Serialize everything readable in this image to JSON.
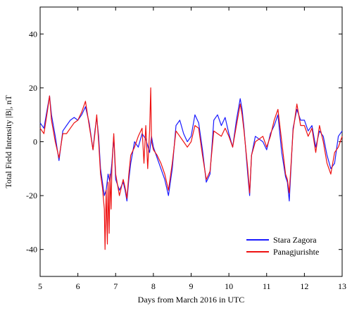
{
  "chart_data": {
    "type": "line",
    "xlabel": "Days from March 2016 in UTC",
    "ylabel": "Total Field Intensity |B|,  nT",
    "xlim": [
      5,
      13
    ],
    "ylim": [
      -50,
      50
    ],
    "x_ticks": [
      5,
      6,
      7,
      8,
      9,
      10,
      11,
      12,
      13
    ],
    "y_ticks": [
      -40,
      -20,
      0,
      20,
      40
    ],
    "grid": false,
    "legend_position": "bottom-right",
    "series": [
      {
        "name": "Stara Zagora",
        "color": "#1a1aff",
        "x": [
          5.0,
          5.1,
          5.2,
          5.25,
          5.3,
          5.4,
          5.5,
          5.6,
          5.7,
          5.8,
          5.9,
          6.0,
          6.1,
          6.2,
          6.3,
          6.4,
          6.45,
          6.5,
          6.55,
          6.6,
          6.65,
          6.7,
          6.75,
          6.8,
          6.85,
          6.9,
          6.95,
          7.0,
          7.1,
          7.2,
          7.25,
          7.3,
          7.35,
          7.4,
          7.5,
          7.6,
          7.7,
          7.8,
          7.9,
          7.95,
          8.0,
          8.1,
          8.2,
          8.3,
          8.4,
          8.5,
          8.6,
          8.7,
          8.8,
          8.9,
          9.0,
          9.1,
          9.2,
          9.3,
          9.4,
          9.5,
          9.6,
          9.7,
          9.8,
          9.9,
          10.0,
          10.1,
          10.2,
          10.3,
          10.35,
          10.4,
          10.5,
          10.55,
          10.6,
          10.7,
          10.8,
          10.9,
          11.0,
          11.1,
          11.2,
          11.3,
          11.4,
          11.5,
          11.55,
          11.6,
          11.7,
          11.8,
          11.9,
          12.0,
          12.1,
          12.2,
          12.3,
          12.4,
          12.5,
          12.6,
          12.7,
          12.8,
          12.9,
          13.0
        ],
        "y": [
          7,
          5,
          13,
          17,
          10,
          2,
          -7,
          4,
          6,
          8,
          9,
          8,
          10,
          13,
          7,
          -3,
          4,
          9,
          2,
          -10,
          -15,
          -20,
          -18,
          -12,
          -15,
          -8,
          2,
          -14,
          -18,
          -15,
          -18,
          -22,
          -14,
          -8,
          0,
          -2,
          3,
          1,
          -4,
          2,
          -2,
          -6,
          -10,
          -14,
          -20,
          -10,
          6,
          8,
          3,
          0,
          2,
          10,
          7,
          -3,
          -15,
          -12,
          8,
          10,
          6,
          9,
          3,
          -2,
          8,
          16,
          12,
          5,
          -12,
          -20,
          -5,
          2,
          1,
          0,
          -3,
          3,
          6,
          10,
          -4,
          -13,
          -15,
          -22,
          5,
          12,
          8,
          8,
          4,
          6,
          -2,
          4,
          2,
          -5,
          -10,
          -8,
          2,
          4
        ]
      },
      {
        "name": "Panagjurishte",
        "color": "#ee1111",
        "x": [
          5.0,
          5.1,
          5.2,
          5.25,
          5.3,
          5.4,
          5.5,
          5.6,
          5.7,
          5.8,
          5.9,
          6.0,
          6.1,
          6.2,
          6.3,
          6.4,
          6.45,
          6.5,
          6.55,
          6.6,
          6.65,
          6.7,
          6.72,
          6.75,
          6.78,
          6.8,
          6.83,
          6.85,
          6.88,
          6.9,
          6.95,
          7.0,
          7.1,
          7.2,
          7.25,
          7.3,
          7.35,
          7.4,
          7.5,
          7.6,
          7.7,
          7.75,
          7.8,
          7.85,
          7.9,
          7.93,
          7.95,
          8.0,
          8.1,
          8.2,
          8.3,
          8.4,
          8.5,
          8.6,
          8.7,
          8.8,
          8.9,
          9.0,
          9.1,
          9.2,
          9.3,
          9.4,
          9.5,
          9.6,
          9.7,
          9.8,
          9.9,
          10.0,
          10.1,
          10.2,
          10.3,
          10.35,
          10.4,
          10.5,
          10.55,
          10.6,
          10.7,
          10.8,
          10.9,
          11.0,
          11.1,
          11.2,
          11.3,
          11.4,
          11.5,
          11.55,
          11.6,
          11.7,
          11.8,
          11.9,
          12.0,
          12.1,
          12.2,
          12.3,
          12.4,
          12.5,
          12.6,
          12.7,
          12.8,
          12.9,
          13.0
        ],
        "y": [
          5,
          3,
          12,
          17,
          8,
          0,
          -6,
          3,
          3,
          5,
          7,
          8,
          11,
          15,
          6,
          -3,
          3,
          10,
          0,
          -12,
          -17,
          -25,
          -40,
          -18,
          -38,
          -15,
          -34,
          -12,
          -25,
          -10,
          3,
          -12,
          -20,
          -14,
          -17,
          -21,
          -12,
          -5,
          -2,
          2,
          5,
          -8,
          6,
          -10,
          4,
          20,
          0,
          -3,
          -5,
          -8,
          -12,
          -18,
          -8,
          4,
          2,
          0,
          -2,
          0,
          6,
          5,
          -5,
          -14,
          -11,
          4,
          3,
          2,
          5,
          2,
          -2,
          6,
          14,
          10,
          4,
          -10,
          -19,
          -5,
          0,
          1,
          2,
          -2,
          2,
          8,
          12,
          0,
          -12,
          -14,
          -19,
          4,
          14,
          6,
          6,
          2,
          5,
          -4,
          6,
          0,
          -8,
          -12,
          -4,
          -2,
          2
        ]
      }
    ]
  }
}
